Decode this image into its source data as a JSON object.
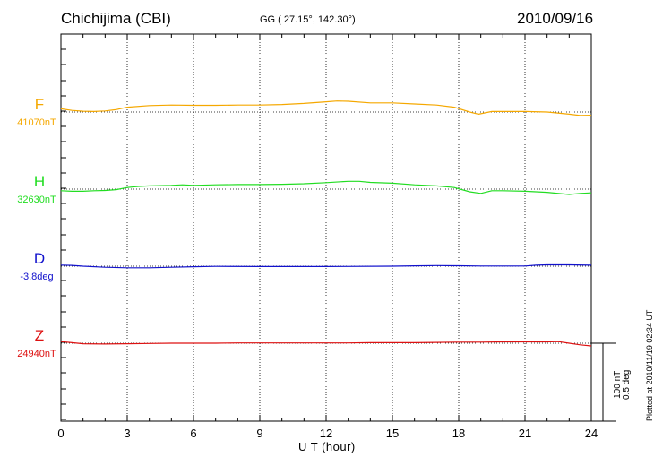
{
  "header": {
    "station": "Chichijima (CBI)",
    "coords": "GG ( 27.15°, 142.30°)",
    "date": "2010/09/16"
  },
  "footer": {
    "plotted": "Plotted at 2010/11/19 02:34 UT",
    "scale_nt": "100 nT",
    "scale_deg": "0.5 deg"
  },
  "chart_data": {
    "type": "line",
    "xlabel": "U T (hour)",
    "xlim": [
      0,
      24
    ],
    "xticks": [
      "0",
      "3",
      "6",
      "9",
      "12",
      "15",
      "18",
      "21",
      "24"
    ],
    "grid": true,
    "scale_bar": {
      "nT": 100,
      "deg": 0.5
    },
    "series": [
      {
        "name": "F",
        "baseline_label": "41070nT",
        "color": "#f5a800",
        "x": [
          0,
          0.5,
          1,
          1.5,
          2,
          2.5,
          3,
          4,
          5,
          6,
          7,
          8,
          9,
          10,
          11,
          12,
          12.5,
          13,
          14,
          15,
          16,
          17,
          17.8,
          18.5,
          18.9,
          19.5,
          20,
          21,
          22,
          23,
          23.5,
          24
        ],
        "values": [
          12,
          6,
          3,
          2,
          4,
          9,
          18,
          24,
          26,
          25,
          25,
          26,
          26,
          28,
          32,
          38,
          41,
          40,
          34,
          34,
          30,
          26,
          18,
          0,
          -8,
          2,
          2,
          2,
          0,
          -8,
          -13,
          -12
        ]
      },
      {
        "name": "H",
        "baseline_label": "32630nT",
        "color": "#22dd22",
        "x": [
          0,
          0.5,
          1,
          1.5,
          2,
          2.5,
          3,
          3.5,
          4,
          5,
          5.5,
          6,
          7,
          8,
          9,
          10,
          11,
          12,
          13,
          13.5,
          14,
          15,
          16,
          17,
          17.8,
          18.5,
          19,
          19.5,
          20,
          21,
          22,
          23,
          23.5,
          24
        ],
        "values": [
          -6,
          -8,
          -8,
          -6,
          -5,
          -2,
          6,
          10,
          12,
          14,
          16,
          14,
          16,
          17,
          17,
          18,
          20,
          24,
          29,
          29,
          25,
          22,
          16,
          12,
          6,
          -10,
          -16,
          -6,
          -6,
          -8,
          -12,
          -20,
          -16,
          -14
        ]
      },
      {
        "name": "D",
        "baseline_label": "-3.8deg",
        "color": "#1111cc",
        "x": [
          0,
          0.5,
          1,
          2,
          3,
          4,
          5,
          6,
          7,
          9,
          12,
          15,
          16,
          17,
          18,
          19,
          21,
          21.5,
          22,
          23,
          24
        ],
        "values": [
          0.02,
          0.015,
          0.0,
          -0.02,
          -0.03,
          -0.03,
          -0.02,
          -0.01,
          -0.004,
          -0.006,
          -0.006,
          0.0,
          0.006,
          0.012,
          0.008,
          0.004,
          0.004,
          0.018,
          0.025,
          0.025,
          0.018
        ]
      },
      {
        "name": "Z",
        "baseline_label": "24940nT",
        "color": "#dd1111",
        "x": [
          0,
          0.5,
          1,
          2,
          3,
          4,
          5,
          6,
          7,
          8,
          9,
          10,
          11,
          12,
          13,
          14,
          15,
          16,
          17,
          18,
          19,
          20,
          21,
          22,
          22.5,
          23,
          23.5,
          24
        ],
        "values": [
          6,
          2,
          -2,
          -3,
          -2,
          -1,
          0,
          0,
          0,
          1,
          1,
          1,
          1,
          1,
          1,
          2,
          2,
          2,
          3,
          4,
          4,
          5,
          5,
          5,
          6,
          0,
          -6,
          -10
        ]
      }
    ]
  }
}
